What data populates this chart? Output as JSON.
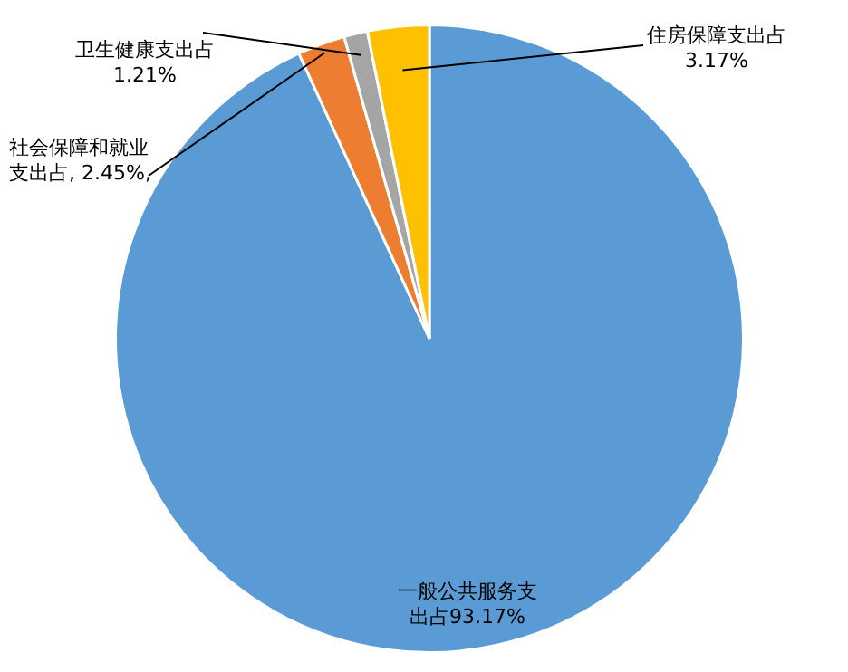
{
  "chart_data": {
    "type": "pie",
    "categories": [
      "一般公共服务支出占",
      "社会保障和就业支出占",
      "卫生健康支出占",
      "住房保障支出占"
    ],
    "values": [
      93.17,
      2.45,
      1.21,
      3.17
    ],
    "value_labels": [
      "93.17%",
      "2.45%,",
      "1.21%",
      "3.17%"
    ],
    "colors": [
      "#5b9bd5",
      "#ed7d31",
      "#a5a5a5",
      "#ffc000"
    ],
    "legend": false
  }
}
